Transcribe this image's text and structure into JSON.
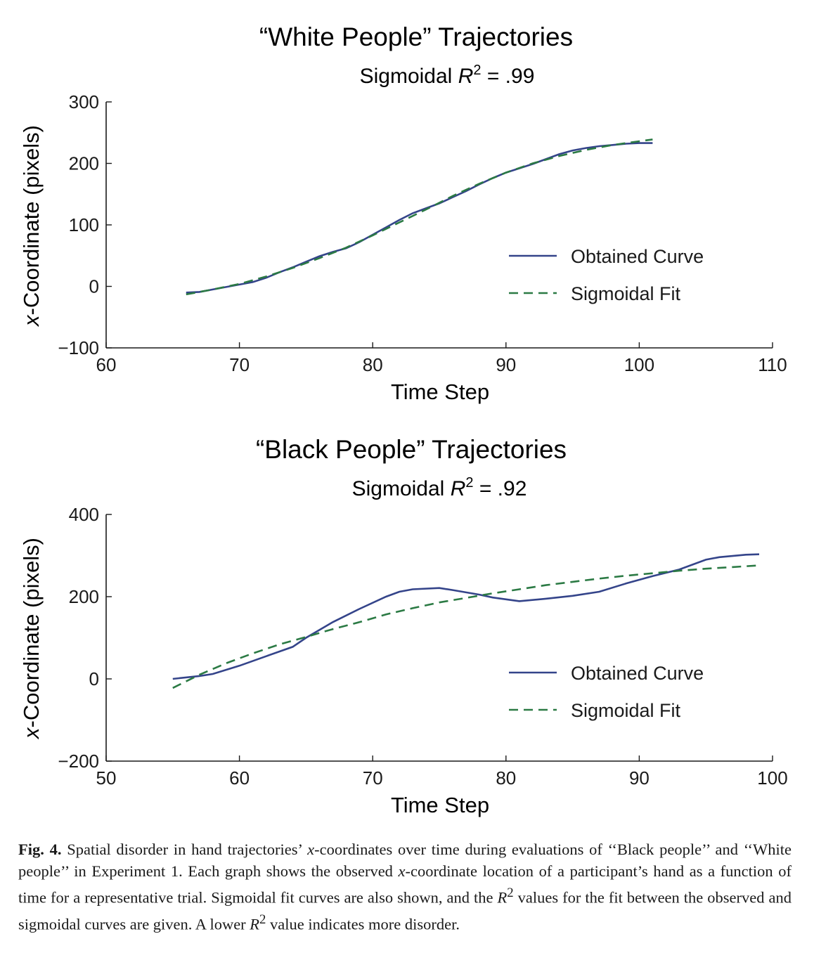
{
  "colors": {
    "obtained": "#34448a",
    "fit": "#2b7a44",
    "axis": "#1a1a1a"
  },
  "chart_data": [
    {
      "type": "line",
      "title": "“White People” Trajectories",
      "subtitle_prefix": "Sigmoidal ",
      "subtitle_var": "R",
      "subtitle_sup": "2",
      "subtitle_suffix": " = .99",
      "xlabel": "Time Step",
      "ylabel_var": "x",
      "ylabel_rest": "-Coordinate (pixels)",
      "xlim": [
        60,
        110
      ],
      "ylim": [
        -100,
        300
      ],
      "xticks": [
        60,
        70,
        80,
        90,
        100,
        110
      ],
      "xtick_labels": [
        "60",
        "70",
        "80",
        "90",
        "100",
        "110"
      ],
      "yticks": [
        -100,
        0,
        100,
        200,
        300
      ],
      "ytick_labels": [
        "−100",
        "0",
        "100",
        "200",
        "300"
      ],
      "legend_position": "right",
      "series": [
        {
          "name": "Obtained Curve",
          "style": "solid",
          "x": [
            66,
            67,
            68,
            69,
            70,
            71,
            72,
            73,
            74,
            75,
            76,
            77,
            78,
            79,
            80,
            81,
            82,
            83,
            84,
            85,
            86,
            87,
            88,
            89,
            90,
            91,
            92,
            93,
            94,
            95,
            96,
            97,
            98,
            99,
            100,
            101
          ],
          "y": [
            -10,
            -9,
            -5,
            -1,
            3,
            7,
            14,
            23,
            31,
            40,
            49,
            56,
            62,
            72,
            84,
            96,
            108,
            119,
            127,
            135,
            145,
            155,
            166,
            176,
            185,
            192,
            199,
            207,
            215,
            221,
            225,
            228,
            230,
            232,
            233,
            233
          ]
        },
        {
          "name": "Sigmoidal Fit",
          "style": "dashed",
          "x": [
            66,
            68,
            70,
            72,
            74,
            76,
            78,
            80,
            82,
            84,
            86,
            88,
            90,
            92,
            94,
            96,
            98,
            100,
            101
          ],
          "y": [
            -13,
            -5,
            4,
            16,
            30,
            46,
            63,
            83,
            104,
            125,
            147,
            167,
            185,
            200,
            212,
            222,
            230,
            236,
            239
          ]
        }
      ]
    },
    {
      "type": "line",
      "title": "“Black People” Trajectories",
      "subtitle_prefix": "Sigmoidal ",
      "subtitle_var": "R",
      "subtitle_sup": "2",
      "subtitle_suffix": " = .92",
      "xlabel": "Time Step",
      "ylabel_var": "x",
      "ylabel_rest": "-Coordinate (pixels)",
      "xlim": [
        50,
        100
      ],
      "ylim": [
        -200,
        400
      ],
      "xticks": [
        50,
        60,
        70,
        80,
        90,
        100
      ],
      "xtick_labels": [
        "50",
        "60",
        "70",
        "80",
        "90",
        "100"
      ],
      "yticks": [
        -200,
        0,
        200,
        400
      ],
      "ytick_labels": [
        "−200",
        "0",
        "200",
        "400"
      ],
      "legend_position": "right",
      "series": [
        {
          "name": "Obtained Curve",
          "style": "solid",
          "x": [
            55,
            57,
            58,
            60,
            62,
            64,
            65,
            67,
            69,
            71,
            72,
            73,
            75,
            76,
            78,
            79,
            81,
            83,
            85,
            87,
            89,
            91,
            93,
            95,
            96,
            98,
            99
          ],
          "y": [
            0,
            7,
            12,
            32,
            55,
            78,
            100,
            138,
            170,
            200,
            212,
            218,
            221,
            216,
            205,
            198,
            189,
            195,
            202,
            212,
            232,
            250,
            266,
            290,
            296,
            302,
            303
          ]
        },
        {
          "name": "Sigmoidal Fit",
          "style": "dashed",
          "x": [
            55,
            57,
            59,
            61,
            63,
            65,
            67,
            69,
            71,
            73,
            75,
            77,
            79,
            81,
            83,
            85,
            87,
            89,
            91,
            93,
            95,
            97,
            99
          ],
          "y": [
            -22,
            10,
            38,
            62,
            84,
            102,
            121,
            138,
            157,
            172,
            186,
            197,
            208,
            218,
            228,
            236,
            244,
            251,
            257,
            263,
            268,
            272,
            276
          ]
        }
      ]
    }
  ],
  "caption": {
    "fig_label": "Fig. 4.",
    "text_1": " Spatial disorder in hand trajectories’ ",
    "var_x": "x",
    "text_2": "-coordinates over time during evaluations of ‘‘Black people’’ and ‘‘White people’’ in Experiment 1. Each graph shows the observed ",
    "text_3": "-coordinate location of a participant’s hand as a function of time for a representative trial. Sigmoidal fit curves are also shown, and the ",
    "var_r": "R",
    "sup_2": "2",
    "text_4": " values for the fit between the observed and sigmoidal curves are given. A lower ",
    "text_5": " value indicates more disorder."
  }
}
